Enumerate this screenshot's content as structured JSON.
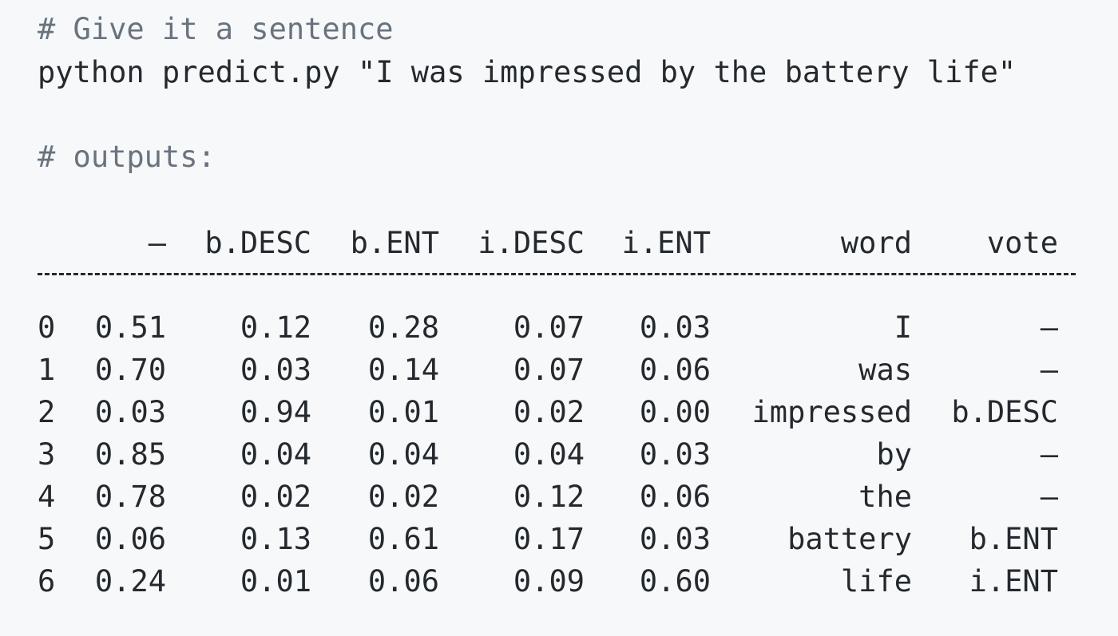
{
  "comment_sentence": "# Give it a sentence",
  "command": "python predict.py \"I was impressed by the battery life\"",
  "comment_outputs": "# outputs:",
  "table": {
    "headers": [
      "",
      "–",
      "b.DESC",
      "b.ENT",
      "i.DESC",
      "i.ENT",
      "word",
      "vote"
    ],
    "rows": [
      [
        "0",
        "0.51",
        "0.12",
        "0.28",
        "0.07",
        "0.03",
        "I",
        "–"
      ],
      [
        "1",
        "0.70",
        "0.03",
        "0.14",
        "0.07",
        "0.06",
        "was",
        "–"
      ],
      [
        "2",
        "0.03",
        "0.94",
        "0.01",
        "0.02",
        "0.00",
        "impressed",
        "b.DESC"
      ],
      [
        "3",
        "0.85",
        "0.04",
        "0.04",
        "0.04",
        "0.03",
        "by",
        "–"
      ],
      [
        "4",
        "0.78",
        "0.02",
        "0.02",
        "0.12",
        "0.06",
        "the",
        "–"
      ],
      [
        "5",
        "0.06",
        "0.13",
        "0.61",
        "0.17",
        "0.03",
        "battery",
        "b.ENT"
      ],
      [
        "6",
        "0.24",
        "0.01",
        "0.06",
        "0.09",
        "0.60",
        "life",
        "i.ENT"
      ]
    ]
  }
}
